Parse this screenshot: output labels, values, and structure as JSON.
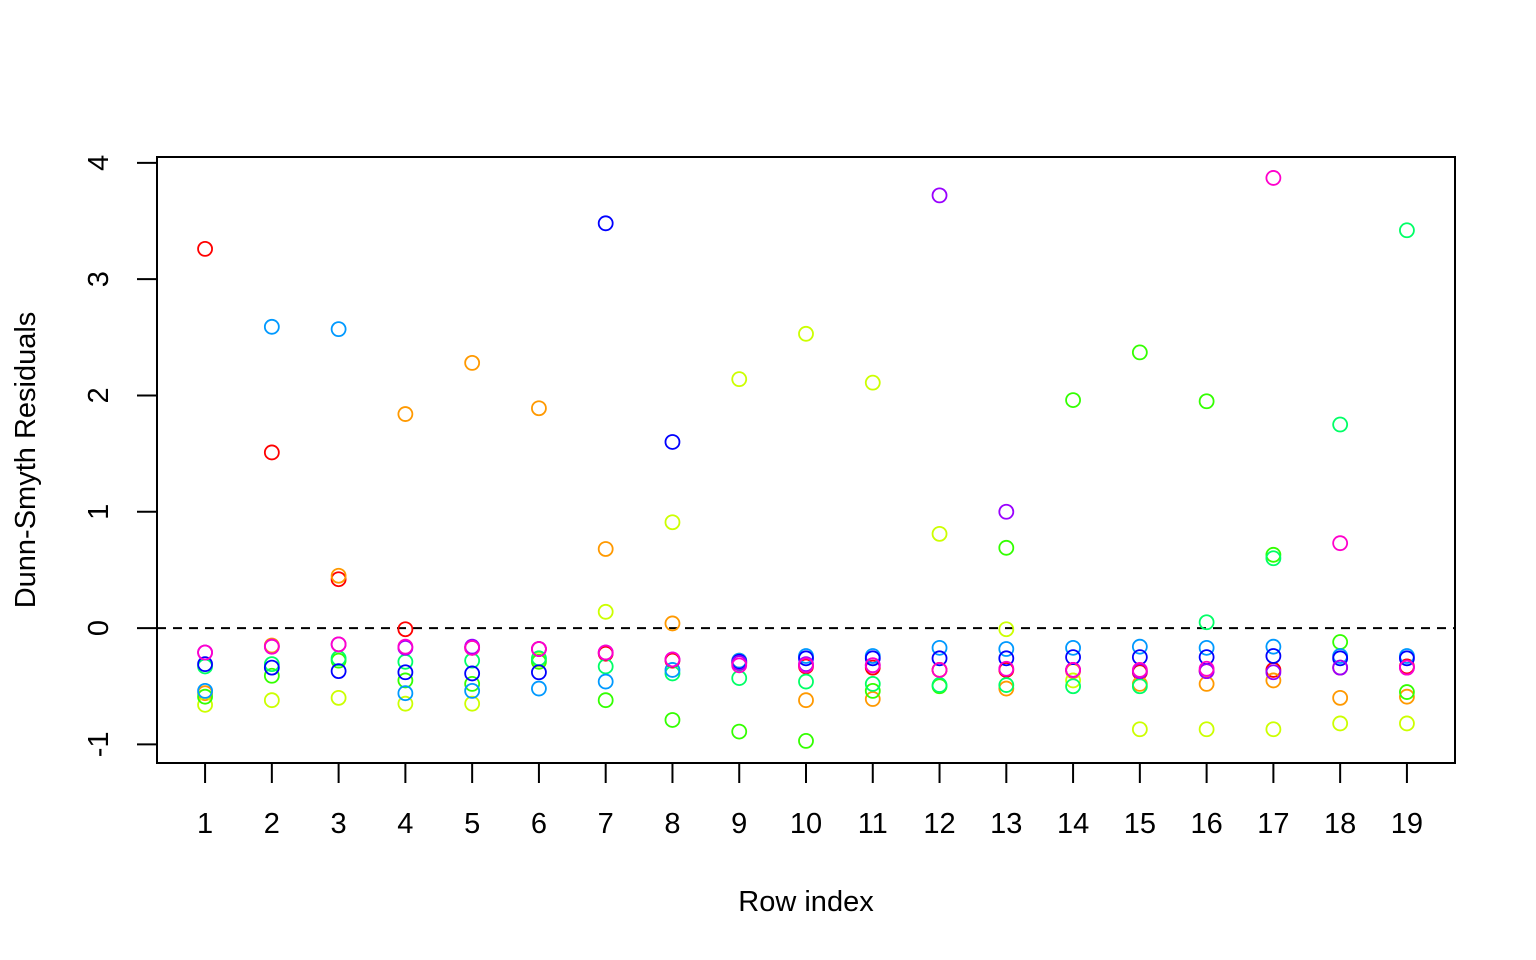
{
  "chart_data": {
    "type": "scatter",
    "title": "",
    "xlabel": "Row index",
    "ylabel": "Dunn-Smyth Residuals",
    "xlim": [
      0.28,
      19.72
    ],
    "ylim": [
      -1.16,
      4.05
    ],
    "x_ticks": [
      1,
      2,
      3,
      4,
      5,
      6,
      7,
      8,
      9,
      10,
      11,
      12,
      13,
      14,
      15,
      16,
      17,
      18,
      19
    ],
    "y_ticks": [
      -1,
      0,
      1,
      2,
      3,
      4
    ],
    "x_tick_labels": [
      "1",
      "2",
      "3",
      "4",
      "5",
      "6",
      "7",
      "8",
      "9",
      "10",
      "11",
      "12",
      "13",
      "14",
      "15",
      "16",
      "17",
      "18",
      "19"
    ],
    "y_tick_labels": [
      "-1",
      "0",
      "1",
      "2",
      "3",
      "4"
    ],
    "reference_line": {
      "y": 0,
      "style": "dashed"
    },
    "marker": "open-circle",
    "grid": false,
    "legend": "none",
    "series": [
      {
        "color": "#FF0000",
        "values": [
          3.26,
          1.51,
          0.42,
          -0.01,
          -0.17,
          -0.18,
          -0.22,
          -0.28,
          -0.3,
          -0.33,
          -0.34,
          -0.36,
          -0.36,
          -0.36,
          -0.38,
          -0.37,
          -0.36,
          -0.34,
          -0.33
        ]
      },
      {
        "color": "#FF9900",
        "values": [
          -0.56,
          -0.15,
          0.45,
          1.84,
          2.28,
          1.89,
          0.68,
          0.04,
          -0.28,
          -0.62,
          -0.61,
          -0.36,
          -0.52,
          -0.37,
          -0.48,
          -0.48,
          -0.45,
          -0.6,
          -0.59
        ]
      },
      {
        "color": "#CCFF00",
        "values": [
          -0.66,
          -0.62,
          -0.6,
          -0.65,
          -0.65,
          -0.27,
          0.14,
          0.91,
          2.14,
          2.53,
          2.11,
          0.81,
          -0.01,
          -0.45,
          -0.87,
          -0.87,
          -0.87,
          -0.82,
          -0.82
        ]
      },
      {
        "color": "#33FF00",
        "values": [
          -0.59,
          -0.41,
          -0.28,
          -0.45,
          -0.48,
          -0.29,
          -0.62,
          -0.79,
          -0.89,
          -0.97,
          -0.54,
          -0.5,
          0.69,
          1.96,
          2.37,
          1.95,
          0.63,
          -0.12,
          -0.55
        ]
      },
      {
        "color": "#00FF66",
        "values": [
          -0.33,
          -0.31,
          -0.26,
          -0.29,
          -0.28,
          -0.26,
          -0.33,
          -0.39,
          -0.43,
          -0.46,
          -0.48,
          -0.49,
          -0.49,
          -0.5,
          -0.5,
          0.05,
          0.6,
          1.75,
          3.42
        ]
      },
      {
        "color": "#0099FF",
        "values": [
          -0.54,
          2.59,
          2.57,
          -0.56,
          -0.54,
          -0.52,
          -0.46,
          -0.36,
          -0.28,
          -0.24,
          -0.24,
          -0.17,
          -0.18,
          -0.17,
          -0.16,
          -0.17,
          -0.16,
          -0.24,
          -0.24
        ]
      },
      {
        "color": "#0000FF",
        "values": [
          -0.31,
          -0.34,
          -0.37,
          -0.38,
          -0.39,
          -0.38,
          3.48,
          1.6,
          -0.29,
          -0.26,
          -0.26,
          -0.26,
          -0.26,
          -0.25,
          -0.25,
          -0.25,
          -0.24,
          -0.26,
          -0.26
        ]
      },
      {
        "color": "#9900FF",
        "values": [
          -0.21,
          -0.16,
          -0.14,
          -0.17,
          -0.16,
          -0.18,
          -0.21,
          -0.27,
          -0.3,
          -0.31,
          -0.32,
          3.72,
          1.0,
          -0.36,
          -0.37,
          -0.37,
          -0.38,
          -0.34,
          -0.34
        ]
      },
      {
        "color": "#FF00CC",
        "values": [
          -0.21,
          -0.16,
          -0.14,
          -0.16,
          -0.17,
          -0.18,
          -0.21,
          -0.27,
          -0.32,
          -0.32,
          -0.32,
          -0.36,
          -0.35,
          -0.36,
          -0.36,
          -0.35,
          3.87,
          0.73,
          -0.34
        ]
      }
    ]
  }
}
